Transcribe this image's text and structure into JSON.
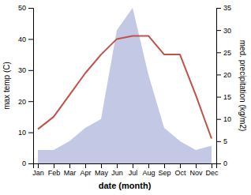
{
  "chart_data": {
    "type": "line",
    "categories": [
      "Jan",
      "Feb",
      "Mar",
      "Apr",
      "May",
      "Jun",
      "Jul",
      "Aug",
      "Sep",
      "Oct",
      "Nov",
      "Dec"
    ],
    "xlabel": "date (month)",
    "ylabel": "max temp (C)",
    "y2label": "med. precipitation (kg/m2)",
    "ylim": [
      0,
      50
    ],
    "yticks": [
      0,
      10,
      20,
      30,
      40,
      50
    ],
    "y2lim": [
      0,
      35
    ],
    "y2ticks": [
      0,
      5,
      10,
      15,
      20,
      25,
      30,
      35
    ],
    "series": [
      {
        "type": "area",
        "axis": "y2",
        "color": "#b8bfe0",
        "values": [
          3,
          3,
          5,
          8,
          10,
          30,
          35,
          20,
          8,
          5,
          3,
          4
        ]
      },
      {
        "type": "line",
        "color": "#c0524a",
        "values": [
          11,
          15,
          22,
          29,
          35,
          40,
          41,
          41,
          35,
          35,
          22,
          8
        ]
      }
    ]
  }
}
